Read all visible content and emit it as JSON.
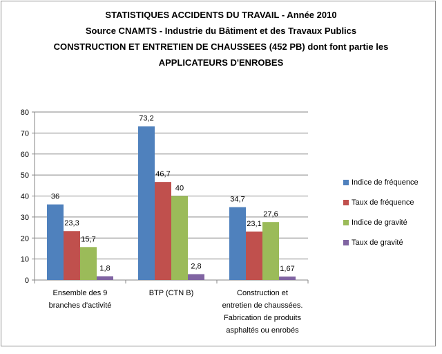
{
  "chart_data": {
    "type": "bar",
    "title_lines": [
      "STATISTIQUES ACCIDENTS DU TRAVAIL - Année 2010",
      "Source CNAMTS - Industrie du Bâtiment et des Travaux Publics",
      "CONSTRUCTION ET ENTRETIEN DE CHAUSSEES (452 PB) dont font partie les",
      "APPLICATEURS D'ENROBES"
    ],
    "categories": [
      [
        "Ensemble des 9",
        "branches d'activité"
      ],
      [
        "BTP (CTN B)"
      ],
      [
        "Construction et",
        "entretien de chaussées.",
        "Fabrication de produits",
        "asphaltés ou enrobés"
      ]
    ],
    "series": [
      {
        "name": "Indice de fréquence",
        "color": "#4f81bd",
        "values": [
          36,
          73.2,
          34.7
        ],
        "labels": [
          "36",
          "73,2",
          "34,7"
        ]
      },
      {
        "name": "Taux de fréquence",
        "color": "#c0504d",
        "values": [
          23.3,
          46.7,
          23.1
        ],
        "labels": [
          "23,3",
          "46,7",
          "23,1"
        ]
      },
      {
        "name": "Indice de gravité",
        "color": "#9bbb59",
        "values": [
          15.7,
          40,
          27.6
        ],
        "labels": [
          "15,7",
          "40",
          "27,6"
        ]
      },
      {
        "name": "Taux de gravité",
        "color": "#8064a2",
        "values": [
          1.8,
          2.8,
          1.67
        ],
        "labels": [
          "1,8",
          "2,8",
          "1,67"
        ]
      }
    ],
    "ylim": [
      0,
      80
    ],
    "yticks": [
      0,
      10,
      20,
      30,
      40,
      50,
      60,
      70,
      80
    ],
    "grid": true,
    "legend_position": "right"
  }
}
